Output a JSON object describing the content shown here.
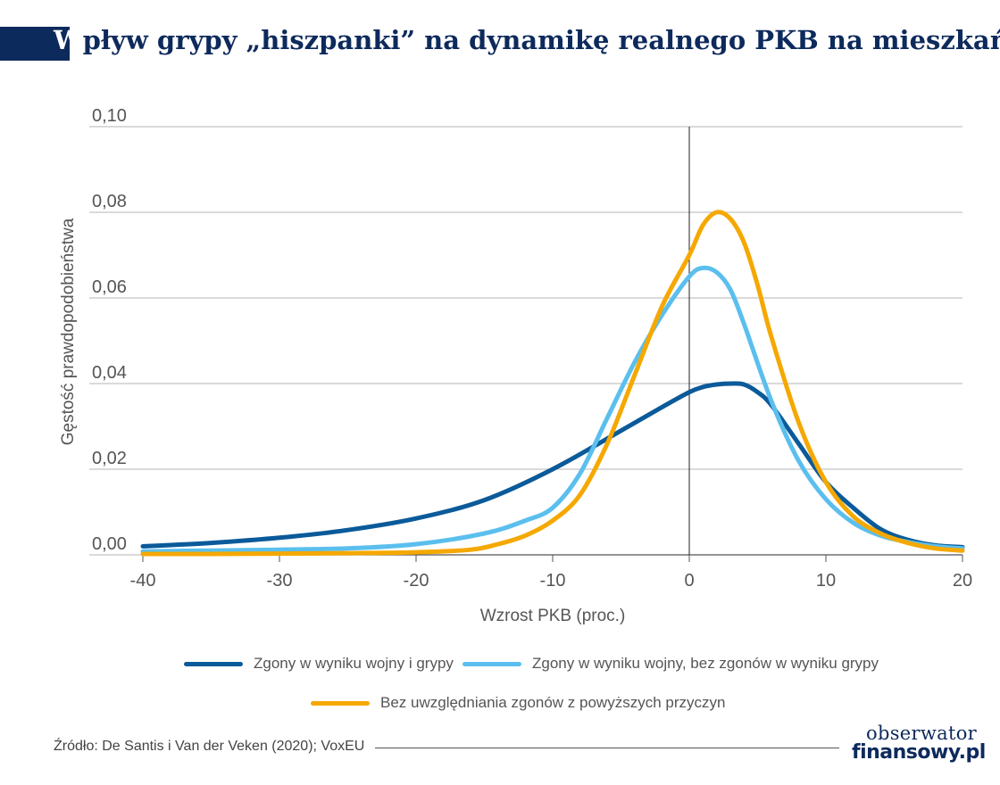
{
  "title_lead": "W",
  "title_rest": "pływ grypy „hiszpanki” na dynamikę realnego PKB na mieszkańca",
  "source": "Źródło: De Santis i Van der Veken (2020); VoxEU",
  "logo": {
    "line1": "obserwator",
    "line2": "finansowy.pl"
  },
  "chart_data": {
    "type": "line",
    "xlabel": "Wzrost PKB (proc.)",
    "ylabel": "Gęstość prawdopodobieństwa",
    "xlim": [
      -40,
      20
    ],
    "ylim": [
      0,
      0.1
    ],
    "x_ticks": [
      -40,
      -30,
      -20,
      -10,
      0,
      10,
      20
    ],
    "x_tick_labels": [
      "-40",
      "-30",
      "-20",
      "-10",
      "0",
      "10",
      "20"
    ],
    "y_ticks": [
      0,
      0.02,
      0.04,
      0.06,
      0.08,
      0.1
    ],
    "y_tick_labels": [
      "0,00",
      "0,02",
      "0,04",
      "0,06",
      "0,08",
      "0,10"
    ],
    "vertical_line_at": 0,
    "grid": "horizontal",
    "legend_position": "bottom",
    "series": [
      {
        "name": "Zgony w wyniku wojny i grypy",
        "color": "#0b5a9a",
        "x": [
          -40,
          -35,
          -30,
          -25,
          -20,
          -15,
          -10,
          -5,
          -2,
          0,
          1,
          2,
          3,
          4,
          5,
          6,
          8,
          10,
          12,
          14,
          16,
          18,
          20
        ],
        "y": [
          0.002,
          0.0028,
          0.004,
          0.0058,
          0.0085,
          0.0128,
          0.02,
          0.029,
          0.0345,
          0.038,
          0.0392,
          0.0398,
          0.04,
          0.0398,
          0.038,
          0.035,
          0.026,
          0.017,
          0.011,
          0.006,
          0.0035,
          0.0022,
          0.0018
        ]
      },
      {
        "name": "Zgony w wyniku wojny, bez zgonów w wyniku grypy",
        "color": "#5bbfee",
        "x": [
          -40,
          -35,
          -30,
          -25,
          -20,
          -15,
          -12,
          -10,
          -8,
          -6,
          -4,
          -2,
          0,
          1,
          2,
          3,
          4,
          6,
          8,
          10,
          12,
          14,
          16,
          18,
          20
        ],
        "y": [
          0.0008,
          0.001,
          0.0012,
          0.0015,
          0.0025,
          0.005,
          0.008,
          0.011,
          0.019,
          0.032,
          0.045,
          0.056,
          0.065,
          0.067,
          0.066,
          0.062,
          0.054,
          0.036,
          0.022,
          0.013,
          0.0075,
          0.0045,
          0.003,
          0.002,
          0.0015
        ]
      },
      {
        "name": "Bez uwzględniania zgonów z powyższych przyczyn",
        "color": "#f5a800",
        "x": [
          -40,
          -35,
          -30,
          -25,
          -20,
          -16,
          -14,
          -12,
          -10,
          -8,
          -6,
          -4,
          -2,
          0,
          1,
          2,
          3,
          4,
          5,
          6,
          8,
          10,
          12,
          14,
          16,
          18,
          20
        ],
        "y": [
          0.0002,
          0.0002,
          0.0003,
          0.0004,
          0.0006,
          0.0012,
          0.0025,
          0.0045,
          0.008,
          0.014,
          0.026,
          0.042,
          0.058,
          0.07,
          0.077,
          0.08,
          0.0785,
          0.073,
          0.063,
          0.051,
          0.031,
          0.017,
          0.009,
          0.005,
          0.0028,
          0.0015,
          0.001
        ]
      }
    ]
  }
}
